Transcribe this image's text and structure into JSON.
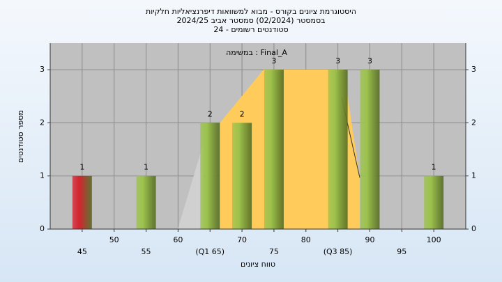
{
  "chart_data": {
    "type": "bar",
    "title": "היסטוגרמת ציונים בקורס - מבוא למשוואות דיפרנציאליות חלקיות",
    "subtitle": "בסמסטר  (02/2024)  סמסטר אביב 2024/25",
    "subtitle2": "סטודנטים רשומים - 24",
    "annotation": "במשימה : Final_A",
    "x_label": "טווח ציונים",
    "y_label": "מספר סטודנטים",
    "x": [
      45,
      55,
      65,
      70,
      75,
      85,
      90,
      100
    ],
    "values": [
      1,
      1,
      2,
      2,
      3,
      3,
      3,
      1
    ],
    "colors": [
      "#d42430",
      "#9cc24c",
      "#9cc24c",
      "#9cc24c",
      "#9cc24c",
      "#9cc24c",
      "#9cc24c",
      "#9cc24c"
    ],
    "xlim": [
      40,
      105
    ],
    "xticks": [
      45,
      50,
      55,
      60,
      {
        "value": 65,
        "label": "(Q1 65)"
      },
      70,
      75,
      80,
      {
        "value": 85,
        "label": "(Q3 85)"
      },
      90,
      95,
      100
    ],
    "ylim": [
      0,
      3.5
    ],
    "yticks": [
      0,
      1,
      2,
      3
    ],
    "grid": true
  }
}
